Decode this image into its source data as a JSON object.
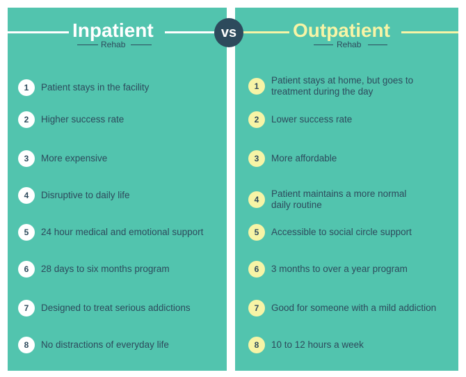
{
  "vs_label": "vs",
  "colors": {
    "panel": "#52c4ae",
    "navy": "#2d4a5c",
    "white": "#ffffff",
    "yellow": "#f7f4a6"
  },
  "inpatient": {
    "title": "Inpatient",
    "subtitle": "Rehab",
    "items": [
      {
        "num": "1",
        "text": "Patient stays in the facility"
      },
      {
        "num": "2",
        "text": "Higher success rate"
      },
      {
        "num": "3",
        "text": "More expensive"
      },
      {
        "num": "4",
        "text": "Disruptive to daily life"
      },
      {
        "num": "5",
        "text": "24 hour medical and emotional support"
      },
      {
        "num": "6",
        "text": "28 days to six months program"
      },
      {
        "num": "7",
        "text": "Designed to treat serious addictions"
      },
      {
        "num": "8",
        "text": "No distractions of everyday life"
      }
    ]
  },
  "outpatient": {
    "title": "Outpatient",
    "subtitle": "Rehab",
    "items": [
      {
        "num": "1",
        "text": "Patient stays at home, but goes to treatment during the day"
      },
      {
        "num": "2",
        "text": "Lower success rate"
      },
      {
        "num": "3",
        "text": "More affordable"
      },
      {
        "num": "4",
        "text": "Patient maintains a more normal daily routine"
      },
      {
        "num": "5",
        "text": "Accessible to social circle support"
      },
      {
        "num": "6",
        "text": "3 months to over a year program"
      },
      {
        "num": "7",
        "text": "Good for someone with a mild addiction"
      },
      {
        "num": "8",
        "text": "10 to 12 hours a week"
      }
    ]
  }
}
